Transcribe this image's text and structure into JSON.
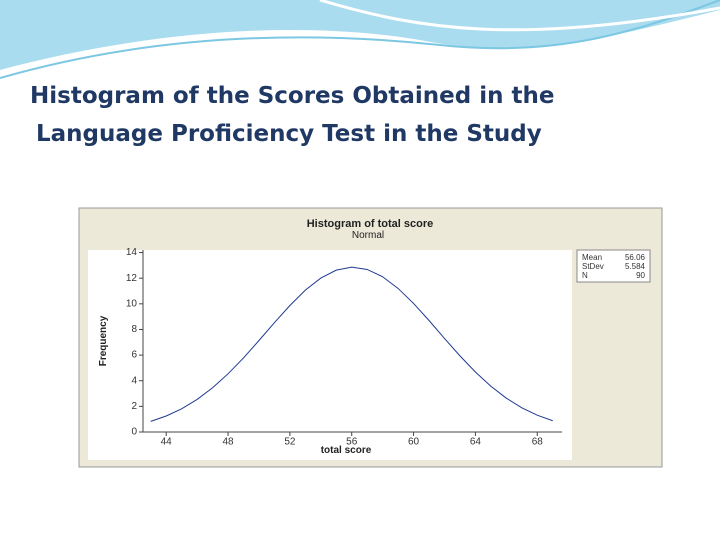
{
  "slide": {
    "title_lines": [
      "Histogram of the Scores Obtained in the",
      "Language Proficiency Test in the Study"
    ]
  },
  "chart_data": {
    "type": "line",
    "title": "Histogram of total score",
    "subtitle": "Normal",
    "x_label": "total score",
    "y_label": "Frequency",
    "x": [
      43,
      44,
      45,
      46,
      47,
      48,
      49,
      50,
      51,
      52,
      53,
      54,
      55,
      56,
      57,
      58,
      59,
      60,
      61,
      62,
      63,
      64,
      65,
      66,
      67,
      68,
      69
    ],
    "values": [
      0.83,
      1.25,
      1.81,
      2.54,
      3.45,
      4.54,
      5.78,
      7.14,
      8.53,
      9.87,
      11.07,
      12.01,
      12.63,
      12.86,
      12.68,
      12.11,
      11.2,
      10.03,
      8.7,
      7.3,
      5.94,
      4.68,
      3.57,
      2.64,
      1.89,
      1.31,
      0.88
    ],
    "color": "#1f3a93",
    "xlim": [
      42.5,
      69.6
    ],
    "xticks": [
      44,
      48,
      52,
      56,
      60,
      64,
      68
    ],
    "ylim": [
      0,
      14.2
    ],
    "yticks": [
      0,
      2,
      4,
      6,
      8,
      10,
      12,
      14
    ],
    "stats": [
      {
        "label": "Mean",
        "value": 56.06
      },
      {
        "label": "StDev",
        "value": 5.584
      },
      {
        "label": "N",
        "value": 90
      }
    ]
  }
}
